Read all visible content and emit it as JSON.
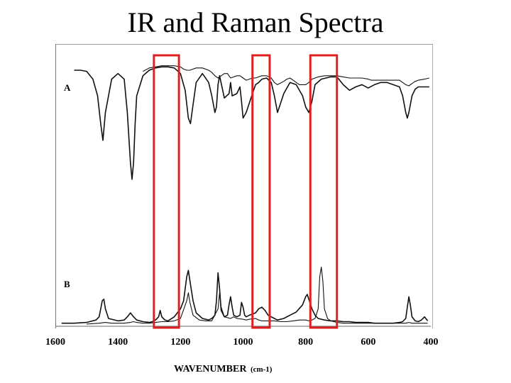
{
  "slide": {
    "title": "IR and Raman Spectra"
  },
  "chart_data": {
    "type": "line",
    "xlabel": "WAVENUMBER",
    "xlabel_unit": "(cm-1)",
    "xlim": [
      1600,
      400
    ],
    "x_reversed": true,
    "x_ticks": [
      {
        "value": 1600,
        "label": "1600"
      },
      {
        "value": 1400,
        "label": "1400"
      },
      {
        "value": 1200,
        "label": "1200"
      },
      {
        "value": 1000,
        "label": "1000"
      },
      {
        "value": 800,
        "label": "800"
      },
      {
        "value": 600,
        "label": "600"
      },
      {
        "value": 400,
        "label": "400"
      }
    ],
    "panels": [
      {
        "label": "A",
        "series": [
          {
            "x": [
              1540,
              1520,
              1500,
              1480,
              1465,
              1455,
              1448,
              1440,
              1420,
              1400,
              1380,
              1370,
              1360,
              1355,
              1350,
              1345,
              1340,
              1320,
              1300,
              1290,
              1280,
              1260,
              1240,
              1220,
              1200,
              1185,
              1175,
              1168,
              1160,
              1150,
              1130,
              1110,
              1100,
              1090,
              1085,
              1080,
              1075,
              1060,
              1045,
              1040,
              1035,
              1020,
              1010,
              1005,
              1000,
              990,
              970,
              960,
              950,
              940,
              925,
              910,
              900,
              890,
              870,
              850,
              830,
              810,
              800,
              790,
              780,
              770,
              750,
              720,
              700,
              680,
              660,
              640,
              620,
              600,
              580,
              560,
              540,
              520,
              500,
              490,
              480,
              475,
              470,
              460,
              450,
              440,
              420,
              405
            ],
            "y": [
              0.93,
              0.93,
              0.92,
              0.85,
              0.7,
              0.45,
              0.3,
              0.55,
              0.85,
              0.9,
              0.85,
              0.55,
              0.1,
              -0.05,
              0.1,
              0.45,
              0.7,
              0.88,
              0.93,
              0.94,
              0.95,
              0.96,
              0.96,
              0.95,
              0.9,
              0.75,
              0.5,
              0.45,
              0.62,
              0.82,
              0.9,
              0.82,
              0.7,
              0.55,
              0.6,
              0.8,
              0.88,
              0.68,
              0.72,
              0.82,
              0.7,
              0.72,
              0.78,
              0.65,
              0.5,
              0.55,
              0.72,
              0.8,
              0.82,
              0.85,
              0.86,
              0.82,
              0.7,
              0.55,
              0.72,
              0.82,
              0.8,
              0.7,
              0.6,
              0.55,
              0.65,
              0.8,
              0.85,
              0.87,
              0.87,
              0.8,
              0.75,
              0.78,
              0.8,
              0.77,
              0.8,
              0.82,
              0.82,
              0.8,
              0.78,
              0.7,
              0.55,
              0.5,
              0.55,
              0.7,
              0.76,
              0.78,
              0.78,
              0.78
            ]
          },
          {
            "x": [
              1320,
              1300,
              1280,
              1260,
              1240,
              1220,
              1200,
              1190,
              1180,
              1170,
              1160,
              1150,
              1130,
              1110,
              1100,
              1090,
              1080,
              1070,
              1060,
              1050,
              1045,
              1040,
              1030,
              1020,
              1010,
              1000,
              990,
              980,
              970,
              960,
              950,
              940,
              925,
              910,
              900,
              890,
              870,
              860,
              850,
              840,
              830,
              820,
              810,
              800,
              790,
              780,
              760,
              740,
              720,
              700,
              680,
              660,
              640,
              620,
              600,
              590,
              580,
              560,
              540,
              520,
              500,
              490,
              480,
              470,
              460,
              450,
              440,
              420,
              405
            ],
            "y": [
              0.92,
              0.95,
              0.96,
              0.97,
              0.97,
              0.97,
              0.96,
              0.94,
              0.93,
              0.93,
              0.94,
              0.95,
              0.95,
              0.93,
              0.91,
              0.88,
              0.86,
              0.88,
              0.9,
              0.9,
              0.88,
              0.86,
              0.87,
              0.88,
              0.88,
              0.86,
              0.84,
              0.85,
              0.86,
              0.86,
              0.87,
              0.88,
              0.88,
              0.86,
              0.82,
              0.8,
              0.83,
              0.85,
              0.86,
              0.84,
              0.82,
              0.8,
              0.8,
              0.8,
              0.82,
              0.85,
              0.87,
              0.88,
              0.88,
              0.88,
              0.87,
              0.86,
              0.86,
              0.86,
              0.85,
              0.84,
              0.84,
              0.84,
              0.84,
              0.84,
              0.84,
              0.82,
              0.8,
              0.79,
              0.81,
              0.83,
              0.84,
              0.85,
              0.86
            ]
          }
        ]
      },
      {
        "label": "B",
        "series": [
          {
            "x": [
              1580,
              1540,
              1500,
              1470,
              1460,
              1450,
              1445,
              1440,
              1430,
              1400,
              1380,
              1370,
              1360,
              1350,
              1340,
              1320,
              1300,
              1290,
              1280,
              1270,
              1265,
              1260,
              1250,
              1240,
              1220,
              1200,
              1190,
              1180,
              1175,
              1170,
              1160,
              1150,
              1130,
              1110,
              1100,
              1090,
              1085,
              1080,
              1075,
              1070,
              1060,
              1050,
              1045,
              1040,
              1035,
              1030,
              1020,
              1010,
              1005,
              1000,
              995,
              990,
              980,
              960,
              950,
              940,
              930,
              920,
              910,
              900,
              890,
              870,
              850,
              830,
              810,
              800,
              795,
              790,
              780,
              770,
              760,
              740,
              720,
              700,
              680,
              660,
              640,
              620,
              600,
              580,
              560,
              540,
              520,
              500,
              490,
              480,
              475,
              470,
              465,
              460,
              450,
              440,
              430,
              420,
              410
            ],
            "y": [
              0.02,
              0.02,
              0.03,
              0.06,
              0.1,
              0.3,
              0.32,
              0.2,
              0.08,
              0.05,
              0.06,
              0.1,
              0.15,
              0.1,
              0.06,
              0.04,
              0.03,
              0.04,
              0.06,
              0.1,
              0.18,
              0.1,
              0.06,
              0.05,
              0.1,
              0.2,
              0.3,
              0.6,
              0.68,
              0.55,
              0.3,
              0.15,
              0.08,
              0.06,
              0.08,
              0.12,
              0.3,
              0.65,
              0.45,
              0.18,
              0.1,
              0.12,
              0.25,
              0.35,
              0.22,
              0.12,
              0.1,
              0.12,
              0.28,
              0.22,
              0.12,
              0.1,
              0.12,
              0.15,
              0.2,
              0.22,
              0.18,
              0.12,
              0.1,
              0.08,
              0.06,
              0.08,
              0.12,
              0.16,
              0.25,
              0.35,
              0.38,
              0.32,
              0.2,
              0.12,
              0.08,
              0.06,
              0.05,
              0.05,
              0.04,
              0.04,
              0.03,
              0.03,
              0.03,
              0.02,
              0.02,
              0.02,
              0.02,
              0.03,
              0.04,
              0.08,
              0.22,
              0.35,
              0.24,
              0.1,
              0.05,
              0.04,
              0.06,
              0.1,
              0.05
            ]
          },
          {
            "x": [
              1500,
              1460,
              1440,
              1420,
              1400,
              1380,
              1360,
              1350,
              1340,
              1320,
              1300,
              1280,
              1260,
              1240,
              1220,
              1200,
              1180,
              1175,
              1170,
              1160,
              1140,
              1120,
              1100,
              1080,
              1075,
              1070,
              1060,
              1040,
              1030,
              1020,
              1000,
              990,
              980,
              960,
              950,
              940,
              920,
              900,
              880,
              860,
              840,
              820,
              800,
              790,
              780,
              770,
              760,
              755,
              750,
              745,
              740,
              730,
              720,
              700,
              680,
              660,
              640,
              620,
              600,
              580,
              560,
              540,
              520,
              500,
              480,
              470,
              460,
              440,
              420,
              410
            ],
            "y": [
              0.01,
              0.02,
              0.03,
              0.02,
              0.02,
              0.02,
              0.03,
              0.04,
              0.03,
              0.02,
              0.02,
              0.03,
              0.04,
              0.04,
              0.05,
              0.08,
              0.3,
              0.4,
              0.28,
              0.12,
              0.06,
              0.05,
              0.05,
              0.2,
              0.4,
              0.22,
              0.1,
              0.08,
              0.1,
              0.08,
              0.07,
              0.06,
              0.07,
              0.08,
              0.06,
              0.05,
              0.05,
              0.05,
              0.04,
              0.04,
              0.05,
              0.06,
              0.06,
              0.05,
              0.06,
              0.08,
              0.2,
              0.6,
              0.72,
              0.55,
              0.2,
              0.08,
              0.05,
              0.03,
              0.02,
              0.02,
              0.02,
              0.02,
              0.02,
              0.02,
              0.02,
              0.02,
              0.02,
              0.02,
              0.02,
              0.03,
              0.02,
              0.02,
              0.02,
              0.02
            ]
          }
        ]
      }
    ],
    "highlights": [
      {
        "x_from": 1285,
        "x_to": 1205
      },
      {
        "x_from": 970,
        "x_to": 915
      },
      {
        "x_from": 785,
        "x_to": 700
      }
    ],
    "highlight_color": "#e02020"
  }
}
